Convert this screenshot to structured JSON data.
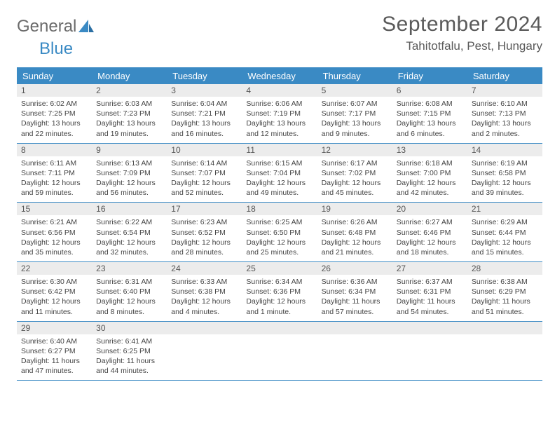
{
  "logo": {
    "word1": "General",
    "word2": "Blue"
  },
  "title": {
    "month": "September 2024",
    "location": "Tahitotfalu, Pest, Hungary"
  },
  "colors": {
    "accent": "#3a8ac4",
    "header_text": "#ffffff",
    "daynum_bg": "#ececec",
    "text": "#444444",
    "title_text": "#5a5a5a",
    "background": "#ffffff"
  },
  "layout": {
    "columns": 7,
    "cell_font_size_pt": 8,
    "header_font_size_pt": 10,
    "title_font_size_pt": 22,
    "location_font_size_pt": 13
  },
  "day_headers": [
    "Sunday",
    "Monday",
    "Tuesday",
    "Wednesday",
    "Thursday",
    "Friday",
    "Saturday"
  ],
  "weeks": [
    [
      {
        "n": "1",
        "sr": "Sunrise: 6:02 AM",
        "ss": "Sunset: 7:25 PM",
        "dl": "Daylight: 13 hours and 22 minutes."
      },
      {
        "n": "2",
        "sr": "Sunrise: 6:03 AM",
        "ss": "Sunset: 7:23 PM",
        "dl": "Daylight: 13 hours and 19 minutes."
      },
      {
        "n": "3",
        "sr": "Sunrise: 6:04 AM",
        "ss": "Sunset: 7:21 PM",
        "dl": "Daylight: 13 hours and 16 minutes."
      },
      {
        "n": "4",
        "sr": "Sunrise: 6:06 AM",
        "ss": "Sunset: 7:19 PM",
        "dl": "Daylight: 13 hours and 12 minutes."
      },
      {
        "n": "5",
        "sr": "Sunrise: 6:07 AM",
        "ss": "Sunset: 7:17 PM",
        "dl": "Daylight: 13 hours and 9 minutes."
      },
      {
        "n": "6",
        "sr": "Sunrise: 6:08 AM",
        "ss": "Sunset: 7:15 PM",
        "dl": "Daylight: 13 hours and 6 minutes."
      },
      {
        "n": "7",
        "sr": "Sunrise: 6:10 AM",
        "ss": "Sunset: 7:13 PM",
        "dl": "Daylight: 13 hours and 2 minutes."
      }
    ],
    [
      {
        "n": "8",
        "sr": "Sunrise: 6:11 AM",
        "ss": "Sunset: 7:11 PM",
        "dl": "Daylight: 12 hours and 59 minutes."
      },
      {
        "n": "9",
        "sr": "Sunrise: 6:13 AM",
        "ss": "Sunset: 7:09 PM",
        "dl": "Daylight: 12 hours and 56 minutes."
      },
      {
        "n": "10",
        "sr": "Sunrise: 6:14 AM",
        "ss": "Sunset: 7:07 PM",
        "dl": "Daylight: 12 hours and 52 minutes."
      },
      {
        "n": "11",
        "sr": "Sunrise: 6:15 AM",
        "ss": "Sunset: 7:04 PM",
        "dl": "Daylight: 12 hours and 49 minutes."
      },
      {
        "n": "12",
        "sr": "Sunrise: 6:17 AM",
        "ss": "Sunset: 7:02 PM",
        "dl": "Daylight: 12 hours and 45 minutes."
      },
      {
        "n": "13",
        "sr": "Sunrise: 6:18 AM",
        "ss": "Sunset: 7:00 PM",
        "dl": "Daylight: 12 hours and 42 minutes."
      },
      {
        "n": "14",
        "sr": "Sunrise: 6:19 AM",
        "ss": "Sunset: 6:58 PM",
        "dl": "Daylight: 12 hours and 39 minutes."
      }
    ],
    [
      {
        "n": "15",
        "sr": "Sunrise: 6:21 AM",
        "ss": "Sunset: 6:56 PM",
        "dl": "Daylight: 12 hours and 35 minutes."
      },
      {
        "n": "16",
        "sr": "Sunrise: 6:22 AM",
        "ss": "Sunset: 6:54 PM",
        "dl": "Daylight: 12 hours and 32 minutes."
      },
      {
        "n": "17",
        "sr": "Sunrise: 6:23 AM",
        "ss": "Sunset: 6:52 PM",
        "dl": "Daylight: 12 hours and 28 minutes."
      },
      {
        "n": "18",
        "sr": "Sunrise: 6:25 AM",
        "ss": "Sunset: 6:50 PM",
        "dl": "Daylight: 12 hours and 25 minutes."
      },
      {
        "n": "19",
        "sr": "Sunrise: 6:26 AM",
        "ss": "Sunset: 6:48 PM",
        "dl": "Daylight: 12 hours and 21 minutes."
      },
      {
        "n": "20",
        "sr": "Sunrise: 6:27 AM",
        "ss": "Sunset: 6:46 PM",
        "dl": "Daylight: 12 hours and 18 minutes."
      },
      {
        "n": "21",
        "sr": "Sunrise: 6:29 AM",
        "ss": "Sunset: 6:44 PM",
        "dl": "Daylight: 12 hours and 15 minutes."
      }
    ],
    [
      {
        "n": "22",
        "sr": "Sunrise: 6:30 AM",
        "ss": "Sunset: 6:42 PM",
        "dl": "Daylight: 12 hours and 11 minutes."
      },
      {
        "n": "23",
        "sr": "Sunrise: 6:31 AM",
        "ss": "Sunset: 6:40 PM",
        "dl": "Daylight: 12 hours and 8 minutes."
      },
      {
        "n": "24",
        "sr": "Sunrise: 6:33 AM",
        "ss": "Sunset: 6:38 PM",
        "dl": "Daylight: 12 hours and 4 minutes."
      },
      {
        "n": "25",
        "sr": "Sunrise: 6:34 AM",
        "ss": "Sunset: 6:36 PM",
        "dl": "Daylight: 12 hours and 1 minute."
      },
      {
        "n": "26",
        "sr": "Sunrise: 6:36 AM",
        "ss": "Sunset: 6:34 PM",
        "dl": "Daylight: 11 hours and 57 minutes."
      },
      {
        "n": "27",
        "sr": "Sunrise: 6:37 AM",
        "ss": "Sunset: 6:31 PM",
        "dl": "Daylight: 11 hours and 54 minutes."
      },
      {
        "n": "28",
        "sr": "Sunrise: 6:38 AM",
        "ss": "Sunset: 6:29 PM",
        "dl": "Daylight: 11 hours and 51 minutes."
      }
    ],
    [
      {
        "n": "29",
        "sr": "Sunrise: 6:40 AM",
        "ss": "Sunset: 6:27 PM",
        "dl": "Daylight: 11 hours and 47 minutes."
      },
      {
        "n": "30",
        "sr": "Sunrise: 6:41 AM",
        "ss": "Sunset: 6:25 PM",
        "dl": "Daylight: 11 hours and 44 minutes."
      },
      null,
      null,
      null,
      null,
      null
    ]
  ]
}
